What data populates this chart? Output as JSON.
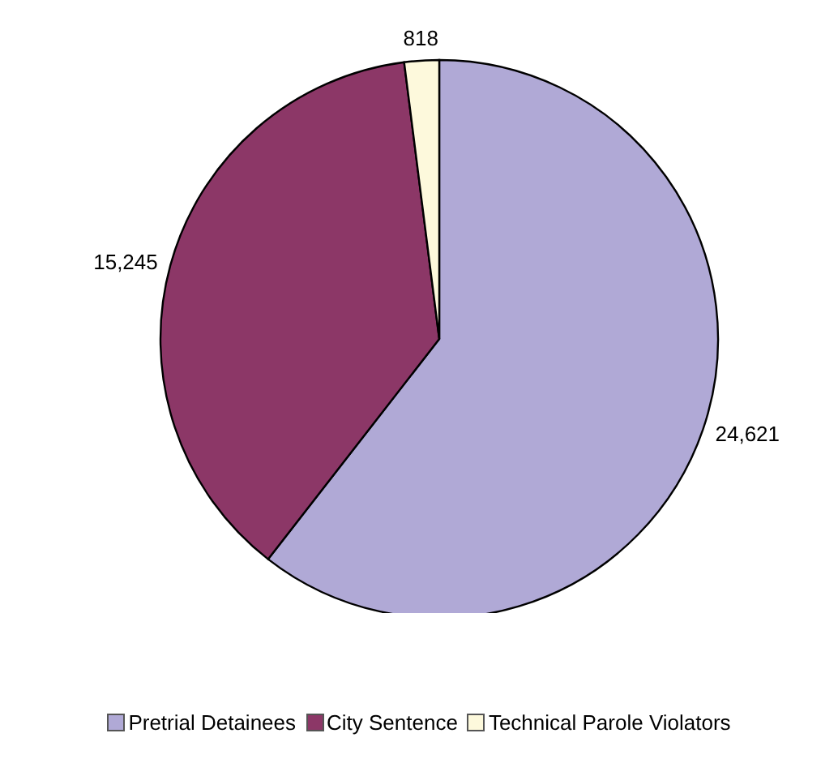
{
  "chart_data": {
    "type": "pie",
    "categories": [
      "Pretrial Detainees",
      "City Sentence",
      "Technical Parole Violators"
    ],
    "values": [
      24621,
      15245,
      818
    ],
    "colors": [
      "#b0a9d6",
      "#8c3767",
      "#fdf9dc"
    ],
    "value_labels": [
      "24,621",
      "15,245",
      "818"
    ],
    "legend": "bottom"
  }
}
